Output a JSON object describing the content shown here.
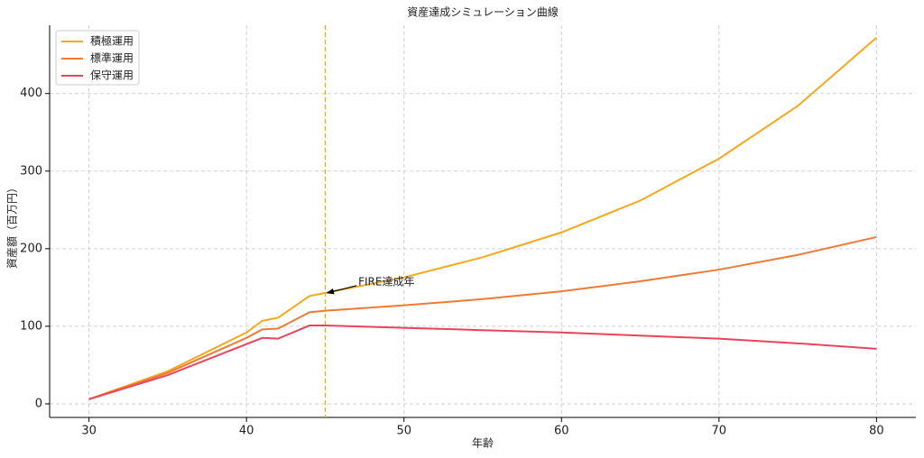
{
  "chart_data": {
    "type": "line",
    "title": "資産達成シミュレーション曲線",
    "x_label": "年齢",
    "y_label": "資産額（百万円）",
    "x": [
      30,
      35,
      40,
      41,
      42,
      44,
      45,
      50,
      55,
      60,
      65,
      70,
      75,
      80
    ],
    "series": [
      {
        "name": "積極運用",
        "color": "#f5a81c",
        "values": [
          6,
          42,
          92,
          107,
          111,
          139,
          143,
          163,
          189,
          221,
          262,
          316,
          384,
          472
        ]
      },
      {
        "name": "標準運用",
        "color": "#ef7a35",
        "values": [
          6,
          40,
          85,
          96,
          97,
          118,
          120,
          127,
          135,
          145,
          158,
          173,
          192,
          215
        ]
      },
      {
        "name": "保守運用",
        "color": "#e8445c",
        "values": [
          6,
          37,
          77,
          85,
          84,
          101,
          101,
          98,
          95,
          92,
          88,
          84,
          78,
          71
        ]
      }
    ],
    "xlim": [
      27.5,
      82.5
    ],
    "ylim": [
      -17.5,
      488
    ],
    "xticks": [
      30,
      40,
      50,
      60,
      70,
      80
    ],
    "yticks": [
      0,
      100,
      200,
      300,
      400
    ],
    "grid": true,
    "legend": "upper-left",
    "vline": {
      "x": 45,
      "color": "#e6a817"
    },
    "annotation": {
      "text": "FIRE達成年",
      "x": 47.1,
      "y": 157,
      "arrow_x": 45,
      "arrow_y": 143
    }
  }
}
